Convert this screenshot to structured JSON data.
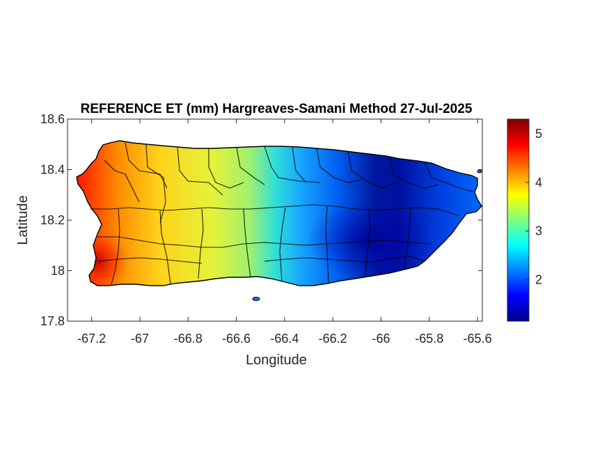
{
  "chart_data": {
    "type": "heatmap",
    "title": "REFERENCE ET (mm) Hargreaves-Samani Method  27-Jul-2025",
    "xlabel": "Longitude",
    "ylabel": "Latitude",
    "xlim": [
      -67.3,
      -65.58
    ],
    "ylim": [
      17.8,
      18.6
    ],
    "x_ticks": [
      -67.2,
      -67,
      -66.8,
      -66.6,
      -66.4,
      -66.2,
      -66,
      -65.8,
      -65.6
    ],
    "x_tick_labels": [
      "-67.2",
      "-67",
      "-66.8",
      "-66.6",
      "-66.4",
      "-66.2",
      "-66",
      "-65.8",
      "-65.6"
    ],
    "y_ticks": [
      18.6,
      18.4,
      18.2,
      18,
      17.8
    ],
    "y_tick_labels": [
      "18.6",
      "18.4",
      "18.2",
      "18",
      "17.8"
    ],
    "colorbar": {
      "colormap": "jet",
      "range": [
        1.15,
        5.3
      ],
      "ticks": [
        2,
        3,
        4,
        5
      ],
      "tick_labels": [
        "2",
        "3",
        "4",
        "5"
      ]
    },
    "field_description_points": [
      {
        "lon": -67.18,
        "lat": 17.98,
        "value": 5.2
      },
      {
        "lon": -67.15,
        "lat": 18.1,
        "value": 4.6
      },
      {
        "lon": -67.05,
        "lat": 18.45,
        "value": 4.4
      },
      {
        "lon": -66.95,
        "lat": 18.35,
        "value": 3.8
      },
      {
        "lon": -66.8,
        "lat": 18.1,
        "value": 3.5
      },
      {
        "lon": -66.6,
        "lat": 18.3,
        "value": 3.1
      },
      {
        "lon": -66.5,
        "lat": 18.2,
        "value": 2.8
      },
      {
        "lon": -66.3,
        "lat": 18.2,
        "value": 2.0
      },
      {
        "lon": -66.1,
        "lat": 18.15,
        "value": 1.4
      },
      {
        "lon": -66.05,
        "lat": 18.1,
        "value": 1.2
      },
      {
        "lon": -65.8,
        "lat": 18.3,
        "value": 1.5
      },
      {
        "lon": -65.7,
        "lat": 18.2,
        "value": 1.9
      }
    ],
    "grid": false,
    "colors": {
      "land_border": "#000000",
      "axes": "#262626",
      "background": "#ffffff"
    }
  }
}
